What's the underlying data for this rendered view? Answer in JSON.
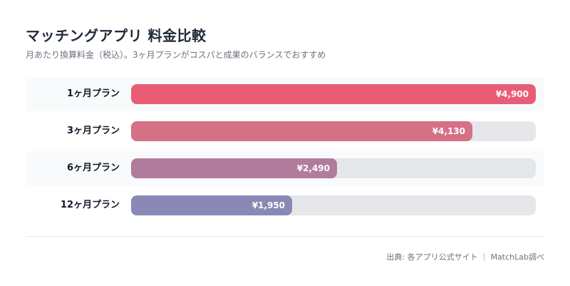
{
  "chart_data": {
    "type": "bar",
    "orientation": "horizontal",
    "title": "マッチングアプリ 料金比較",
    "subtitle": "月あたり換算料金（税込）。3ヶ月プランがコスパと成果のバランスでおすすめ",
    "categories": [
      "1ヶ月プラン",
      "3ヶ月プラン",
      "6ヶ月プラン",
      "12ヶ月プラン"
    ],
    "values": [
      4900,
      4130,
      2490,
      1950
    ],
    "value_labels": [
      "¥4,900",
      "¥4,130",
      "¥2,490",
      "¥1,950"
    ],
    "colors": [
      "#e85d75",
      "#d57184",
      "#b17b9c",
      "#8a88b4"
    ],
    "xlim": [
      0,
      4900
    ],
    "grid": false,
    "xlabel": "",
    "ylabel": ""
  },
  "footer": {
    "source": "出典: 各アプリ公式サイト ｜ MatchLab調べ"
  }
}
